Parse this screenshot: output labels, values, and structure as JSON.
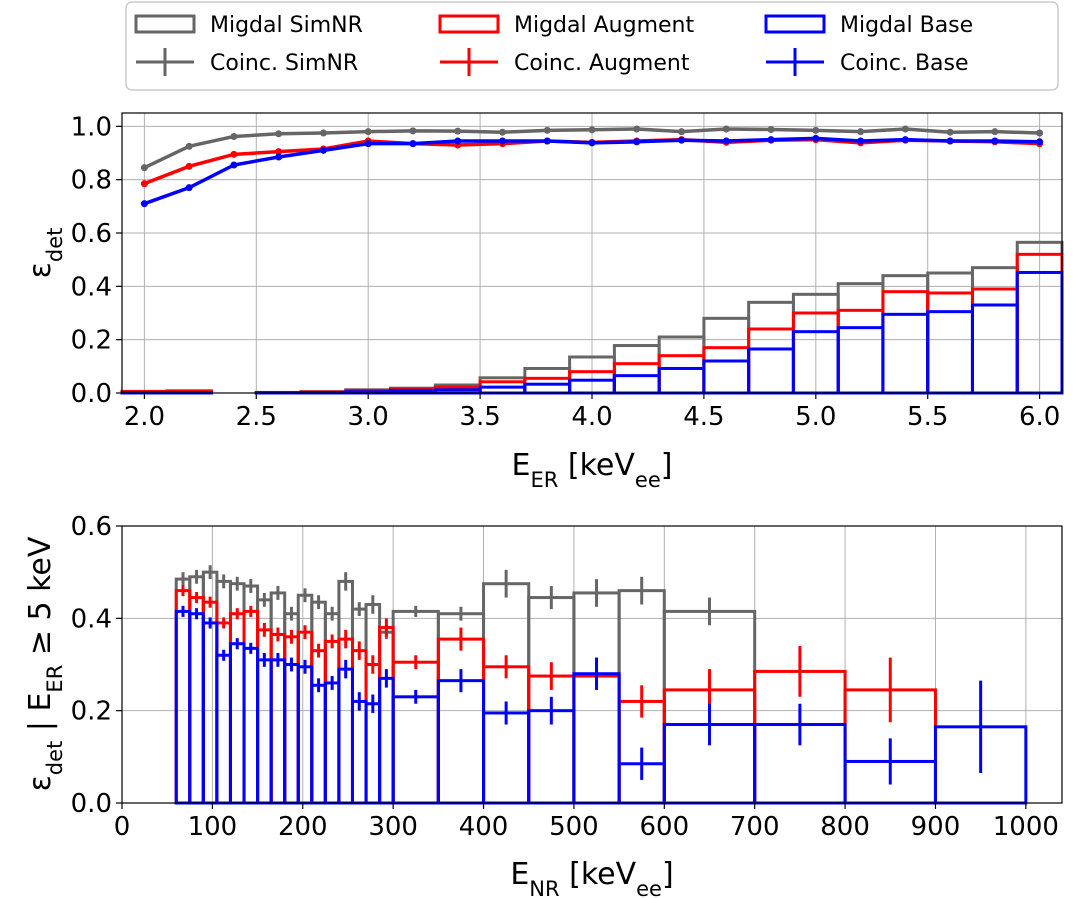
{
  "legend": {
    "placement": "top",
    "entries": [
      {
        "label": "Migdal SimNR",
        "color": "#666666",
        "style": "step"
      },
      {
        "label": "Migdal Augment",
        "color": "#ff0000",
        "style": "step"
      },
      {
        "label": "Migdal Base",
        "color": "#0000ff",
        "style": "step"
      },
      {
        "label": "Coinc.  SimNR",
        "color": "#666666",
        "style": "errorbar"
      },
      {
        "label": "Coinc.  Augment",
        "color": "#ff0000",
        "style": "errorbar"
      },
      {
        "label": "Coinc.  Base",
        "color": "#0000ff",
        "style": "errorbar"
      }
    ]
  },
  "chart_data": [
    {
      "type": "line",
      "xlabel_main": "E",
      "xlabel_sub": "ER",
      "xlabel_unit_pre": " [keV",
      "xlabel_unit_sub": "ee",
      "xlabel_unit_post": "]",
      "ylabel_main": "ε",
      "ylabel_sub": "det",
      "xlim": [
        1.9,
        6.1
      ],
      "ylim": [
        0.0,
        1.05
      ],
      "xticks": [
        2.0,
        2.5,
        3.0,
        3.5,
        4.0,
        4.5,
        5.0,
        5.5,
        6.0
      ],
      "xtick_labels": [
        "2.0",
        "2.5",
        "3.0",
        "3.5",
        "4.0",
        "4.5",
        "5.0",
        "5.5",
        "6.0"
      ],
      "yticks": [
        0.0,
        0.2,
        0.4,
        0.6,
        0.8,
        1.0
      ],
      "ytick_labels": [
        "0.0",
        "0.2",
        "0.4",
        "0.6",
        "0.8",
        "1.0"
      ],
      "grid": true,
      "bin_edges": [
        1.9,
        2.1,
        2.3,
        2.5,
        2.7,
        2.9,
        3.1,
        3.3,
        3.5,
        3.7,
        3.9,
        4.1,
        4.3,
        4.5,
        4.7,
        4.9,
        5.1,
        5.3,
        5.5,
        5.7,
        5.9,
        6.1
      ],
      "step_series": [
        {
          "name": "Migdal SimNR",
          "color": "#666666",
          "values": [
            0.003,
            0.003,
            0.0,
            0.002,
            0.005,
            0.012,
            0.018,
            0.03,
            0.057,
            0.092,
            0.135,
            0.178,
            0.21,
            0.28,
            0.34,
            0.37,
            0.41,
            0.44,
            0.45,
            0.47,
            0.565
          ]
        },
        {
          "name": "Migdal Augment",
          "color": "#ff0000",
          "values": [
            0.006,
            0.008,
            0.0,
            0.002,
            0.004,
            0.01,
            0.015,
            0.022,
            0.042,
            0.055,
            0.08,
            0.11,
            0.14,
            0.17,
            0.24,
            0.3,
            0.31,
            0.38,
            0.375,
            0.39,
            0.52
          ]
        },
        {
          "name": "Migdal Base",
          "color": "#0000ff",
          "values": [
            0.002,
            0.002,
            0.0,
            0.001,
            0.002,
            0.005,
            0.01,
            0.012,
            0.022,
            0.033,
            0.048,
            0.065,
            0.092,
            0.12,
            0.165,
            0.23,
            0.245,
            0.295,
            0.305,
            0.33,
            0.452
          ]
        }
      ],
      "line_series": [
        {
          "name": "Coinc.  SimNR",
          "color": "#666666",
          "x": [
            2.0,
            2.2,
            2.4,
            2.6,
            2.8,
            3.0,
            3.2,
            3.4,
            3.6,
            3.8,
            4.0,
            4.2,
            4.4,
            4.6,
            4.8,
            5.0,
            5.2,
            5.4,
            5.6,
            5.8,
            6.0
          ],
          "values": [
            0.845,
            0.925,
            0.962,
            0.972,
            0.975,
            0.98,
            0.983,
            0.982,
            0.978,
            0.985,
            0.987,
            0.99,
            0.98,
            0.99,
            0.988,
            0.985,
            0.98,
            0.99,
            0.978,
            0.98,
            0.975
          ]
        },
        {
          "name": "Coinc.  Augment",
          "color": "#ff0000",
          "x": [
            2.0,
            2.2,
            2.4,
            2.6,
            2.8,
            3.0,
            3.2,
            3.4,
            3.6,
            3.8,
            4.0,
            4.2,
            4.4,
            4.6,
            4.8,
            5.0,
            5.2,
            5.4,
            5.6,
            5.8,
            6.0
          ],
          "values": [
            0.785,
            0.85,
            0.895,
            0.905,
            0.915,
            0.945,
            0.935,
            0.93,
            0.935,
            0.945,
            0.94,
            0.945,
            0.95,
            0.94,
            0.948,
            0.95,
            0.938,
            0.948,
            0.945,
            0.942,
            0.935
          ]
        },
        {
          "name": "Coinc.  Base",
          "color": "#0000ff",
          "x": [
            2.0,
            2.2,
            2.4,
            2.6,
            2.8,
            3.0,
            3.2,
            3.4,
            3.6,
            3.8,
            4.0,
            4.2,
            4.4,
            4.6,
            4.8,
            5.0,
            5.2,
            5.4,
            5.6,
            5.8,
            6.0
          ],
          "values": [
            0.71,
            0.77,
            0.855,
            0.885,
            0.91,
            0.935,
            0.935,
            0.945,
            0.945,
            0.945,
            0.938,
            0.942,
            0.948,
            0.945,
            0.95,
            0.955,
            0.945,
            0.95,
            0.945,
            0.945,
            0.942
          ]
        }
      ]
    },
    {
      "type": "bar",
      "xlabel_main": "E",
      "xlabel_sub": "NR",
      "xlabel_unit_pre": " [keV",
      "xlabel_unit_sub": "ee",
      "xlabel_unit_post": "]",
      "ylabel_main": "ε",
      "ylabel_sub": "det",
      "ylabel_mid": " | E",
      "ylabel_sub2": "ER",
      "ylabel_post": " ≥ 5 keV",
      "xlim": [
        0,
        1040
      ],
      "ylim": [
        0.0,
        0.6
      ],
      "xticks": [
        0,
        100,
        200,
        300,
        400,
        500,
        600,
        700,
        800,
        900,
        1000
      ],
      "xtick_labels": [
        "0",
        "100",
        "200",
        "300",
        "400",
        "500",
        "600",
        "700",
        "800",
        "900",
        "1000"
      ],
      "yticks": [
        0.0,
        0.2,
        0.4,
        0.6
      ],
      "ytick_labels": [
        "0.0",
        "0.2",
        "0.4",
        "0.6"
      ],
      "grid": true,
      "bin_edges": [
        60,
        75,
        90,
        105,
        120,
        135,
        150,
        165,
        180,
        195,
        210,
        225,
        240,
        255,
        270,
        285,
        300,
        350,
        400,
        450,
        500,
        550,
        600,
        700,
        800,
        900,
        1000
      ],
      "series": [
        {
          "name": "Migdal SimNR",
          "color": "#666666",
          "values": [
            0.485,
            0.49,
            0.5,
            0.48,
            0.475,
            0.47,
            0.44,
            0.455,
            0.41,
            0.45,
            0.435,
            0.41,
            0.48,
            0.42,
            0.43,
            0.37,
            0.415,
            0.41,
            0.475,
            0.445,
            0.455,
            0.46,
            0.415,
            null,
            null,
            null
          ],
          "errors": [
            0.015,
            0.015,
            0.015,
            0.015,
            0.015,
            0.015,
            0.015,
            0.015,
            0.015,
            0.015,
            0.015,
            0.015,
            0.02,
            0.015,
            0.02,
            0.015,
            0.012,
            0.015,
            0.03,
            0.025,
            0.03,
            0.03,
            0.03,
            null,
            null,
            null
          ]
        },
        {
          "name": "Migdal Augment",
          "color": "#ff0000",
          "values": [
            0.46,
            0.445,
            0.435,
            0.39,
            0.41,
            0.415,
            0.375,
            0.365,
            0.36,
            0.37,
            0.33,
            0.35,
            0.355,
            0.33,
            0.3,
            0.38,
            0.305,
            0.355,
            0.295,
            0.275,
            0.275,
            0.22,
            0.245,
            0.285,
            0.245,
            null
          ],
          "errors": [
            0.012,
            0.012,
            0.012,
            0.012,
            0.012,
            0.012,
            0.015,
            0.015,
            0.015,
            0.015,
            0.015,
            0.015,
            0.02,
            0.02,
            0.02,
            0.02,
            0.015,
            0.025,
            0.025,
            0.03,
            0.03,
            0.035,
            0.045,
            0.055,
            0.07,
            null
          ]
        },
        {
          "name": "Migdal Base",
          "color": "#0000ff",
          "values": [
            0.415,
            0.41,
            0.39,
            0.32,
            0.345,
            0.335,
            0.31,
            0.31,
            0.3,
            0.295,
            0.255,
            0.26,
            0.29,
            0.22,
            0.215,
            0.27,
            0.23,
            0.265,
            0.195,
            0.2,
            0.28,
            0.085,
            0.17,
            0.17,
            0.09,
            0.165
          ],
          "errors": [
            0.012,
            0.012,
            0.012,
            0.012,
            0.012,
            0.012,
            0.015,
            0.015,
            0.015,
            0.015,
            0.015,
            0.015,
            0.02,
            0.02,
            0.02,
            0.02,
            0.015,
            0.025,
            0.025,
            0.03,
            0.035,
            0.035,
            0.045,
            0.045,
            0.05,
            0.1
          ]
        }
      ]
    }
  ]
}
